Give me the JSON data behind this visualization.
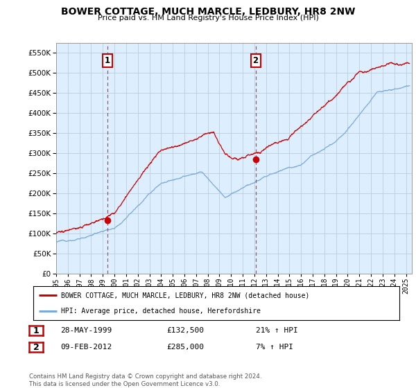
{
  "title": "BOWER COTTAGE, MUCH MARCLE, LEDBURY, HR8 2NW",
  "subtitle": "Price paid vs. HM Land Registry's House Price Index (HPI)",
  "ylim": [
    0,
    575000
  ],
  "yticks": [
    0,
    50000,
    100000,
    150000,
    200000,
    250000,
    300000,
    350000,
    400000,
    450000,
    500000,
    550000
  ],
  "xlim_start": 1995.0,
  "xlim_end": 2025.5,
  "sale1_x": 1999.38,
  "sale1_y": 132500,
  "sale2_x": 2012.1,
  "sale2_y": 285000,
  "legend_property": "BOWER COTTAGE, MUCH MARCLE, LEDBURY, HR8 2NW (detached house)",
  "legend_hpi": "HPI: Average price, detached house, Herefordshire",
  "table_row1": [
    "1",
    "28-MAY-1999",
    "£132,500",
    "21% ↑ HPI"
  ],
  "table_row2": [
    "2",
    "09-FEB-2012",
    "£285,000",
    "7% ↑ HPI"
  ],
  "footer": "Contains HM Land Registry data © Crown copyright and database right 2024.\nThis data is licensed under the Open Government Licence v3.0.",
  "property_color": "#cc0000",
  "hpi_color": "#7aaadd",
  "plot_bg_color": "#ddeeff",
  "background_color": "#ffffff",
  "grid_color": "#bbccdd"
}
